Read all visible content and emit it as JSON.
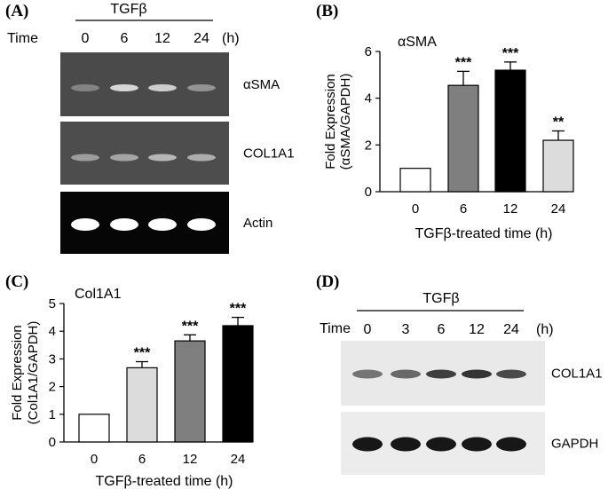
{
  "panelA": {
    "label": "(A)",
    "treatment": "TGFβ",
    "time_label": "Time",
    "unit": "(h)",
    "timepoints": [
      "0",
      "6",
      "12",
      "24"
    ],
    "blots": [
      {
        "label": "αSMA",
        "band_intensity": [
          0.35,
          0.85,
          0.8,
          0.45
        ]
      },
      {
        "label": "COL1A1",
        "band_intensity": [
          0.5,
          0.55,
          0.65,
          0.6
        ]
      },
      {
        "label": "Actin",
        "band_intensity": [
          1.0,
          1.0,
          1.0,
          1.0
        ]
      }
    ]
  },
  "panelD": {
    "label": "(D)",
    "treatment": "TGFβ",
    "time_label": "Time",
    "unit": "(h)",
    "timepoints": [
      "0",
      "3",
      "6",
      "12",
      "24"
    ],
    "blots": [
      {
        "label": "COL1A1",
        "band_intensity": [
          0.55,
          0.6,
          0.8,
          0.85,
          0.75
        ]
      },
      {
        "label": "GAPDH",
        "band_intensity": [
          0.95,
          0.95,
          0.95,
          0.95,
          0.95
        ]
      }
    ]
  },
  "chart_data": [
    {
      "panel": "(B)",
      "type": "bar",
      "title": "αSMA",
      "xlabel": "TGFβ-treated time (h)",
      "ylabel_line1": "Fold Expression",
      "ylabel_line2": "(αSMA/GAPDH)",
      "categories": [
        "0",
        "6",
        "12",
        "24"
      ],
      "values": [
        1.0,
        4.55,
        5.2,
        2.2
      ],
      "errors": [
        0,
        0.6,
        0.35,
        0.4
      ],
      "significance": [
        "",
        "***",
        "***",
        "**"
      ],
      "bar_colors": [
        "#ffffff",
        "#7f7f7f",
        "#000000",
        "#dcdcdc"
      ],
      "ylim": [
        0,
        6
      ],
      "yticks": [
        "0",
        "2",
        "4",
        "6"
      ]
    },
    {
      "panel": "(C)",
      "type": "bar",
      "title": "Col1A1",
      "xlabel": "TGFβ-treated time (h)",
      "ylabel_line1": "Fold Expression",
      "ylabel_line2": "(Col1A1/GAPDH)",
      "categories": [
        "0",
        "6",
        "12",
        "24"
      ],
      "values": [
        1.0,
        2.68,
        3.65,
        4.2
      ],
      "errors": [
        0,
        0.22,
        0.22,
        0.3
      ],
      "significance": [
        "",
        "***",
        "***",
        "***"
      ],
      "bar_colors": [
        "#ffffff",
        "#dcdcdc",
        "#7f7f7f",
        "#000000"
      ],
      "ylim": [
        0,
        5
      ],
      "yticks": [
        "0",
        "1",
        "2",
        "3",
        "4",
        "5"
      ]
    }
  ]
}
